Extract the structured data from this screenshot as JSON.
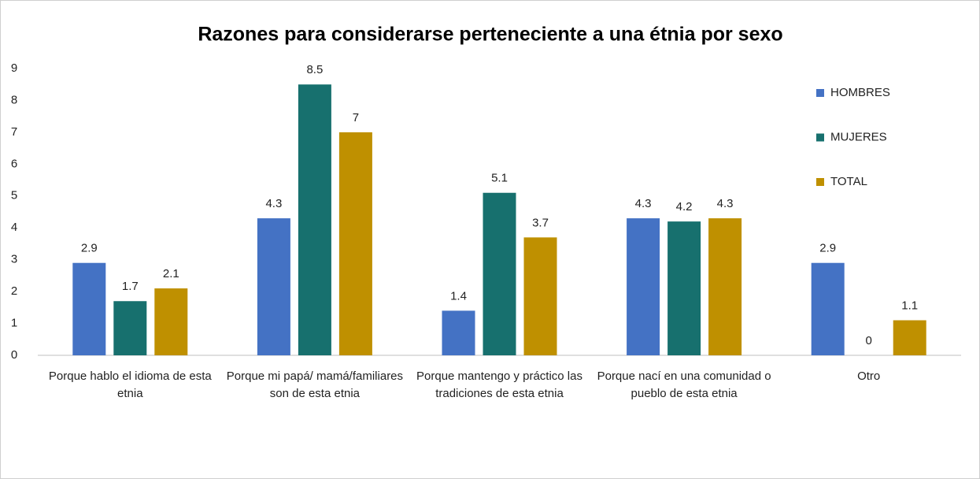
{
  "chart_data": {
    "type": "bar",
    "title": "Razones para considerarse perteneciente a una étnia por sexo",
    "categories": [
      "Porque hablo el idioma de esta etnia",
      "Porque mi papá/ mamá/familiares son de esta etnia",
      "Porque mantengo y práctico las tradiciones de esta etnia",
      "Porque nací en una comunidad o pueblo de esta etnia",
      "Otro"
    ],
    "series": [
      {
        "name": "HOMBRES",
        "color": "#4472c4",
        "values": [
          2.9,
          4.3,
          1.4,
          4.3,
          2.9
        ]
      },
      {
        "name": "MUJERES",
        "color": "#17706e",
        "values": [
          1.7,
          8.5,
          5.1,
          4.2,
          0
        ]
      },
      {
        "name": "TOTAL",
        "color": "#bf9000",
        "values": [
          2.1,
          7,
          3.7,
          4.3,
          1.1
        ]
      }
    ],
    "ylim": [
      0,
      9
    ],
    "yticks": [
      0,
      1,
      2,
      3,
      4,
      5,
      6,
      7,
      8,
      9
    ],
    "grid": false,
    "legend": "right"
  }
}
